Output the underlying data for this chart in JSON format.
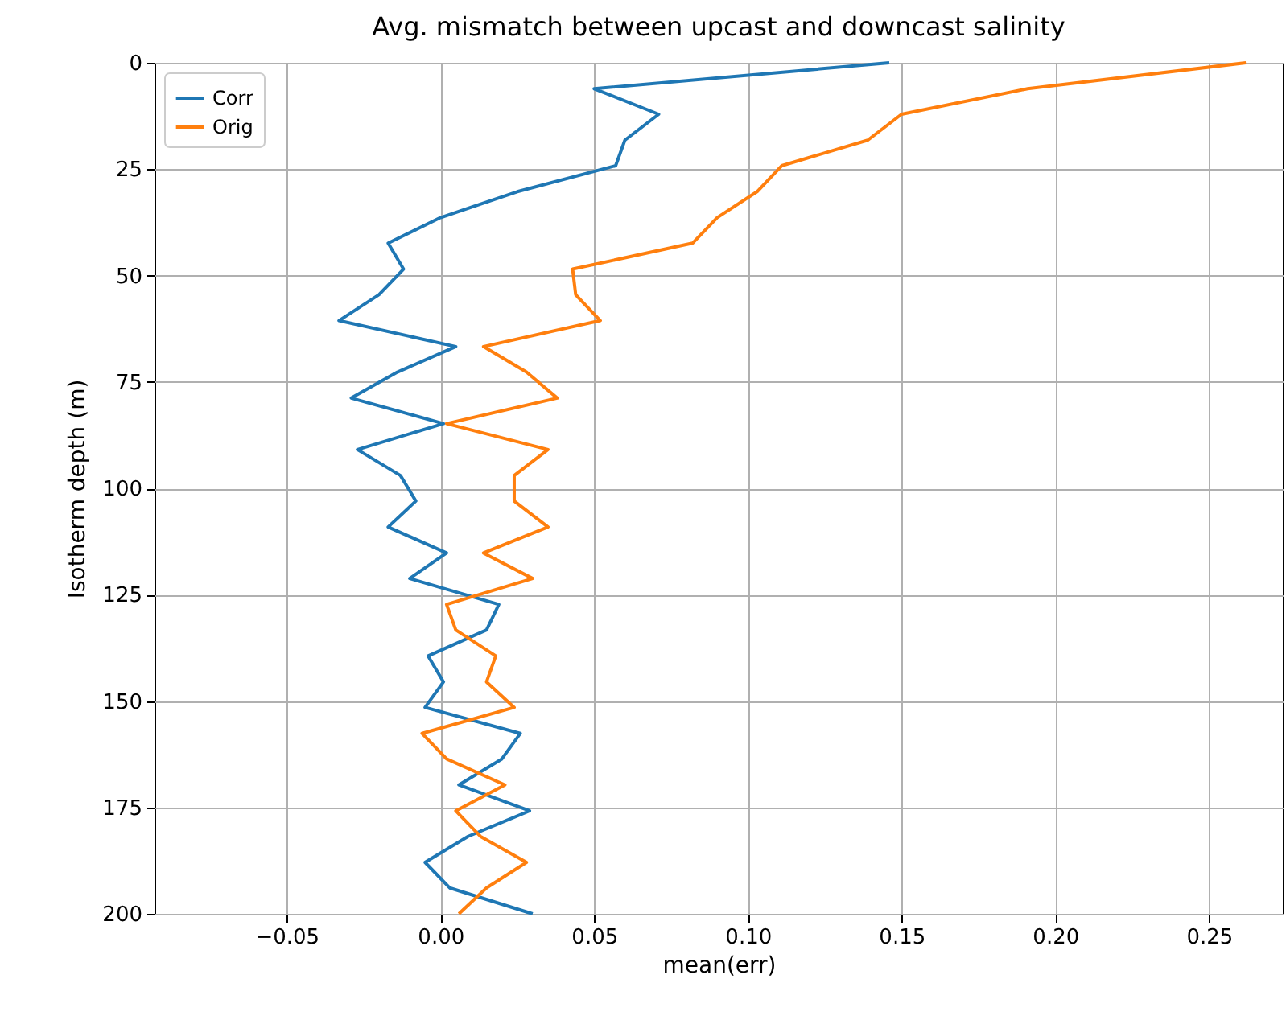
{
  "chart_data": {
    "type": "line",
    "title": "Avg. mismatch between upcast and downcast salinity",
    "xlabel": "mean(err)",
    "ylabel": "Isotherm depth (m)",
    "orientation": "horizontal",
    "x": [
      0,
      6.1,
      12.1,
      18.2,
      24.2,
      30.3,
      36.4,
      42.4,
      48.5,
      54.5,
      60.6,
      66.7,
      72.7,
      78.8,
      84.8,
      90.9,
      97.0,
      103.0,
      109.1,
      115.2,
      121.2,
      127.3,
      133.3,
      139.4,
      145.5,
      151.5,
      157.6,
      163.6,
      169.7,
      175.8,
      181.8,
      187.9,
      193.9,
      200
    ],
    "series": [
      {
        "name": "Corr",
        "color": "#1f77b4",
        "values": [
          0.146,
          0.05,
          0.071,
          0.06,
          0.057,
          0.025,
          0.0,
          -0.017,
          -0.012,
          -0.02,
          -0.033,
          0.005,
          -0.014,
          -0.029,
          0.001,
          -0.027,
          -0.013,
          -0.008,
          -0.017,
          0.002,
          -0.01,
          0.019,
          0.015,
          -0.004,
          0.001,
          -0.005,
          0.026,
          0.02,
          0.006,
          0.029,
          0.009,
          -0.005,
          0.003,
          0.03
        ]
      },
      {
        "name": "Orig",
        "color": "#ff7f0e",
        "values": [
          0.262,
          0.191,
          0.15,
          0.139,
          0.111,
          0.103,
          0.09,
          0.082,
          0.043,
          0.044,
          0.052,
          0.014,
          0.028,
          0.038,
          0.002,
          0.035,
          0.024,
          0.024,
          0.035,
          0.014,
          0.03,
          0.002,
          0.005,
          0.018,
          0.015,
          0.024,
          -0.006,
          0.002,
          0.021,
          0.005,
          0.013,
          0.028,
          0.015,
          0.006
        ]
      }
    ],
    "xlim": [
      -0.093,
      0.274
    ],
    "xticks": [
      {
        "value": -0.05,
        "label": "−0.05"
      },
      {
        "value": 0,
        "label": "0.00"
      },
      {
        "value": 0.05,
        "label": "0.05"
      },
      {
        "value": 0.1,
        "label": "0.10"
      },
      {
        "value": 0.15,
        "label": "0.15"
      },
      {
        "value": 0.2,
        "label": "0.20"
      },
      {
        "value": 0.25,
        "label": "0.25"
      }
    ],
    "ylim": [
      200,
      0
    ],
    "yticks": [
      0,
      25,
      50,
      75,
      100,
      125,
      150,
      175,
      200
    ],
    "grid": true,
    "legend": "top left",
    "line_style": "solid"
  }
}
